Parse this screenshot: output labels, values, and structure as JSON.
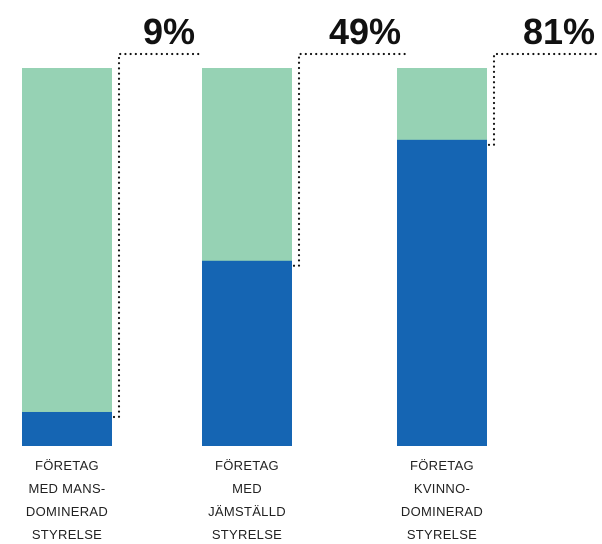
{
  "chart_data": {
    "type": "bar",
    "stacked": true,
    "categories": [
      [
        "FÖRETAG",
        "MED MANS-",
        "DOMINERAD",
        "STYRELSE"
      ],
      [
        "FÖRETAG",
        "MED",
        "JÄMSTÄLLD",
        "STYRELSE"
      ],
      [
        "FÖRETAG",
        "KVINNO-",
        "DOMINERAD",
        "STYRELSE"
      ]
    ],
    "values": [
      9,
      49,
      81
    ],
    "value_labels": [
      "9%",
      "49%",
      "81%"
    ],
    "ylim": [
      0,
      100
    ],
    "colors": {
      "value": "#1565b3",
      "remainder": "#96d2b4",
      "leader": "#111111"
    },
    "grid": false,
    "legend": "none"
  }
}
